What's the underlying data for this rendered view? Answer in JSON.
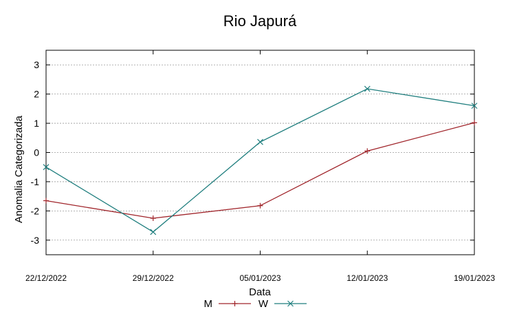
{
  "chart_data": {
    "type": "line",
    "title": "Rio Japurá",
    "xlabel": "Data",
    "ylabel": "Anomalia Categorizada",
    "categories": [
      "22/12/2022",
      "29/12/2022",
      "05/01/2023",
      "12/01/2023",
      "19/01/2023"
    ],
    "yticks": [
      "3",
      "2",
      "1",
      "0",
      "-1",
      "-2",
      "-3"
    ],
    "ylim": [
      -3.5,
      3.5
    ],
    "grid": true,
    "legend_position": "bottom",
    "series": [
      {
        "name": "M",
        "color": "#a0242a",
        "marker": "plus",
        "values": [
          -1.65,
          -2.25,
          -1.82,
          0.05,
          1.02
        ]
      },
      {
        "name": "W",
        "color": "#1f7e7e",
        "marker": "cross",
        "values": [
          -0.5,
          -2.72,
          0.36,
          2.18,
          1.6
        ]
      }
    ]
  }
}
